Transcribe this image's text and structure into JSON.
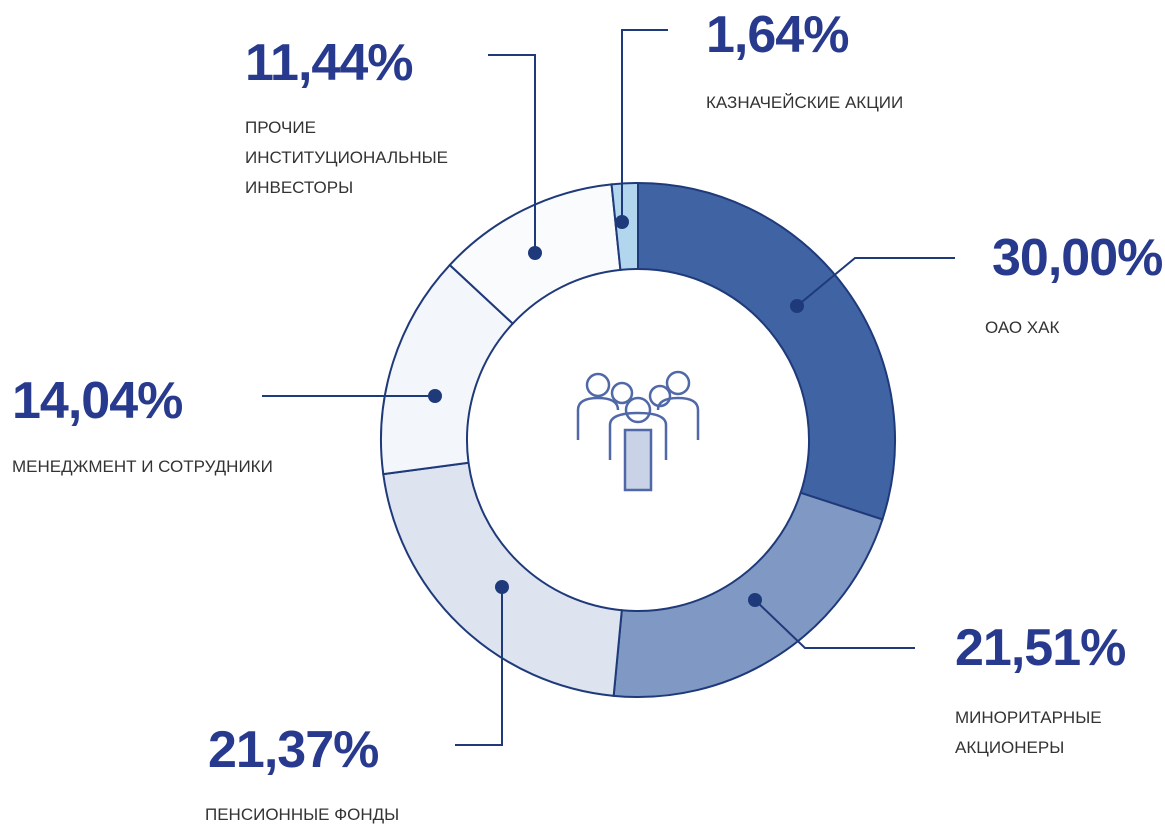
{
  "chart_data": {
    "type": "donut",
    "categories": [
      "ОАО ХАК",
      "МИНОРИТАРНЫЕ АКЦИОНЕРЫ",
      "ПЕНСИОННЫЕ ФОНДЫ",
      "МЕНЕДЖМЕНТ И СОТРУДНИКИ",
      "ПРОЧИЕ ИНСТИТУЦИОНАЛЬНЫЕ ИНВЕСТОРЫ",
      "КАЗНАЧЕЙСКИЕ АКЦИИ"
    ],
    "values": [
      30.0,
      21.51,
      21.37,
      14.04,
      11.44,
      1.64
    ],
    "value_labels": [
      "30,00%",
      "21,51%",
      "21,37%",
      "14,04%",
      "11,44%",
      "1,64%"
    ],
    "colors": [
      "#3f63a3",
      "#7f98c4",
      "#dde3ef",
      "#f3f6fa",
      "#fafbfc",
      "#b3d6ef"
    ]
  }
}
